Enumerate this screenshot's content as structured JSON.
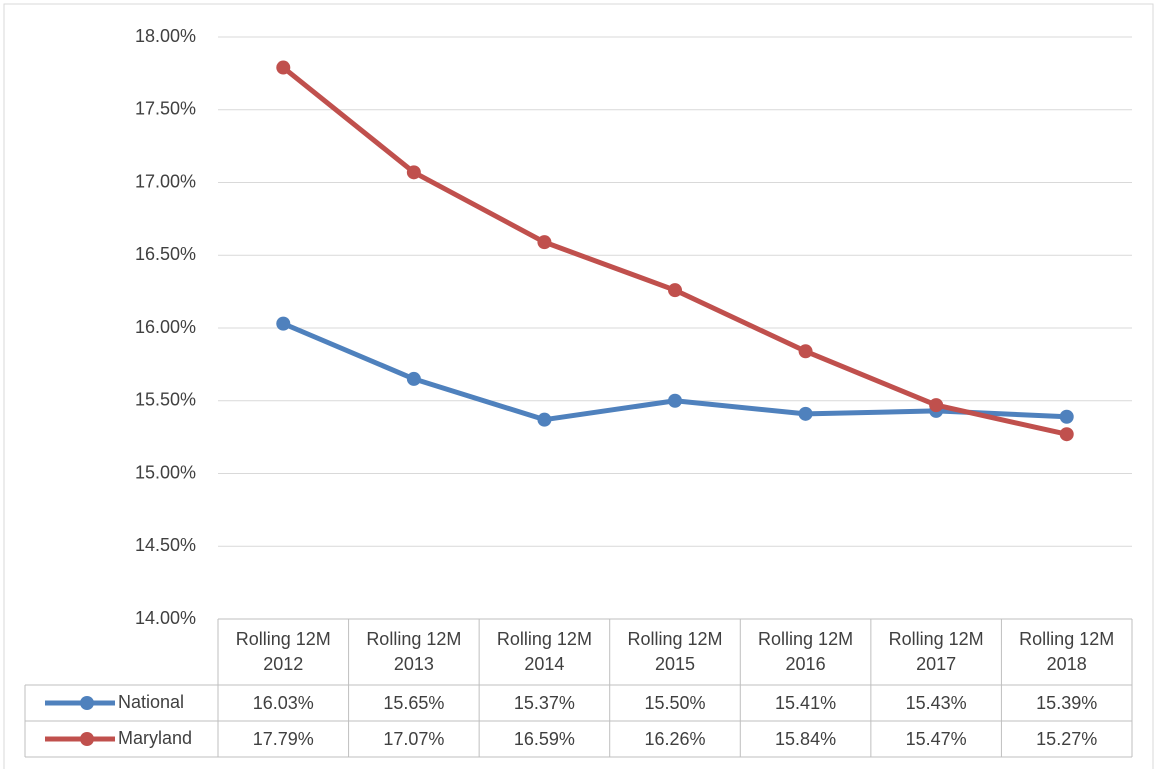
{
  "chart_data": {
    "type": "line",
    "categories": [
      "Rolling 12M 2012",
      "Rolling 12M 2013",
      "Rolling 12M 2014",
      "Rolling 12M 2015",
      "Rolling 12M 2016",
      "Rolling 12M 2017",
      "Rolling 12M 2018"
    ],
    "series": [
      {
        "name": "National",
        "color": "#4f81bd",
        "values": [
          16.03,
          15.65,
          15.37,
          15.5,
          15.41,
          15.43,
          15.39
        ],
        "value_labels": [
          "16.03%",
          "15.65%",
          "15.37%",
          "15.50%",
          "15.41%",
          "15.43%",
          "15.39%"
        ]
      },
      {
        "name": "Maryland",
        "color": "#c0504d",
        "values": [
          17.79,
          17.07,
          16.59,
          16.26,
          15.84,
          15.47,
          15.27
        ],
        "value_labels": [
          "17.79%",
          "17.07%",
          "16.59%",
          "16.26%",
          "15.84%",
          "15.47%",
          "15.27%"
        ]
      }
    ],
    "ylim": [
      14,
      18
    ],
    "yticks": [
      {
        "value": 14,
        "label": "14.00%"
      },
      {
        "value": 14.5,
        "label": "14.50%"
      },
      {
        "value": 15,
        "label": "15.00%"
      },
      {
        "value": 15.5,
        "label": "15.50%"
      },
      {
        "value": 16,
        "label": "16.00%"
      },
      {
        "value": 16.5,
        "label": "16.50%"
      },
      {
        "value": 17,
        "label": "17.00%"
      },
      {
        "value": 17.5,
        "label": "17.50%"
      },
      {
        "value": 18,
        "label": "18.00%"
      }
    ],
    "grid": true
  }
}
